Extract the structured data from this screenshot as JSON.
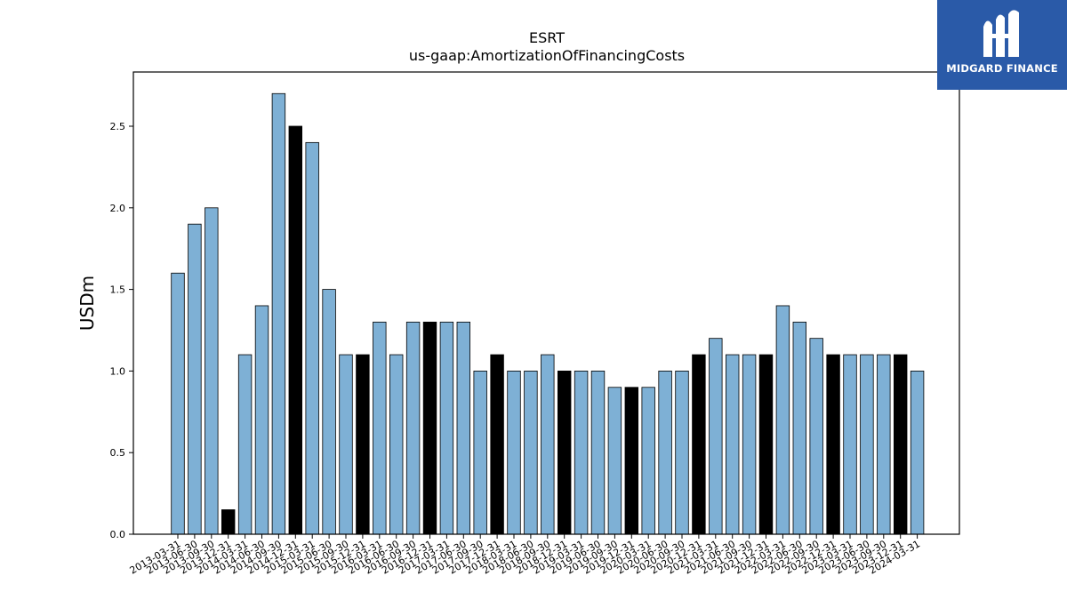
{
  "chart_data": {
    "type": "bar",
    "title": "ESRT",
    "subtitle": "us-gaap:AmortizationOfFinancingCosts",
    "xlabel": "",
    "ylabel": "USDm",
    "ylim": [
      0,
      2.83
    ],
    "yticks": [
      "0.0",
      "0.5",
      "1.0",
      "1.5",
      "2.0",
      "2.5"
    ],
    "grid": false,
    "colors": {
      "default": "#7eb0d5",
      "highlight": "#000000",
      "edge": "#000000"
    },
    "categories": [
      "2013-03-31",
      "2013-06-30",
      "2013-09-30",
      "2013-12-31",
      "2014-03-31",
      "2014-06-30",
      "2014-09-30",
      "2014-12-31",
      "2015-03-31",
      "2015-06-30",
      "2015-09-30",
      "2015-12-31",
      "2016-03-31",
      "2016-06-30",
      "2016-09-30",
      "2016-12-31",
      "2017-03-31",
      "2017-06-30",
      "2017-09-30",
      "2017-12-31",
      "2018-03-31",
      "2018-06-30",
      "2018-09-30",
      "2018-12-31",
      "2019-03-31",
      "2019-06-30",
      "2019-09-30",
      "2019-12-31",
      "2020-03-31",
      "2020-06-30",
      "2020-09-30",
      "2020-12-31",
      "2021-03-31",
      "2021-06-30",
      "2021-09-30",
      "2021-12-31",
      "2022-03-31",
      "2022-06-30",
      "2022-09-30",
      "2022-12-31",
      "2023-03-31",
      "2023-06-30",
      "2023-09-30",
      "2023-12-31",
      "2024-03-31"
    ],
    "values": [
      1.6,
      1.9,
      2.0,
      0.15,
      1.1,
      1.4,
      2.7,
      2.5,
      2.4,
      1.5,
      1.1,
      1.1,
      1.3,
      1.1,
      1.3,
      1.3,
      1.3,
      1.3,
      1.0,
      1.1,
      1.0,
      1.0,
      1.1,
      1.0,
      1.0,
      1.0,
      0.9,
      0.9,
      0.9,
      1.0,
      1.0,
      1.1,
      1.2,
      1.1,
      1.1,
      1.1,
      1.4,
      1.3,
      1.2,
      1.1,
      1.1,
      1.1,
      1.1,
      1.1,
      1.0
    ],
    "highlighted": [
      false,
      false,
      false,
      true,
      false,
      false,
      false,
      true,
      false,
      false,
      false,
      true,
      false,
      false,
      false,
      true,
      false,
      false,
      false,
      true,
      false,
      false,
      false,
      true,
      false,
      false,
      false,
      true,
      false,
      false,
      false,
      true,
      false,
      false,
      false,
      true,
      false,
      false,
      false,
      true,
      false,
      false,
      false,
      true,
      false
    ]
  },
  "logo": {
    "text": "MIDGARD FINANCE",
    "name": "midgard-logo"
  }
}
